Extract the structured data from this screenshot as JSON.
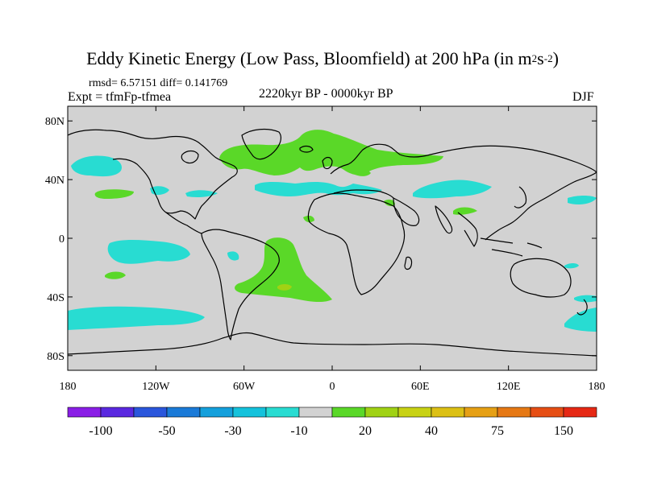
{
  "title_main": "Eddy Kinetic Energy (Low Pass, Bloomfield) at 200 hPa (in m",
  "title_sup1": "2",
  "title_mid": "s",
  "title_sup2": "-2",
  "title_end": ")",
  "stats": "rmsd= 6.57151 diff= 0.141769",
  "experiment": "Expt = tfmFp-tfmea",
  "period": "2220kyr BP - 0000kyr BP",
  "season": "DJF",
  "axes": {
    "lat_labels": [
      "80N",
      "40N",
      "0",
      "40S",
      "80S"
    ],
    "lat_values": [
      80,
      40,
      0,
      -40,
      -80
    ],
    "lon_labels": [
      "180",
      "120W",
      "60W",
      "0",
      "60E",
      "120E",
      "180"
    ],
    "lon_values": [
      -180,
      -120,
      -60,
      0,
      60,
      120,
      180
    ],
    "lon_range": [
      -180,
      180
    ],
    "lat_range": [
      -90,
      90
    ]
  },
  "colorbar": {
    "colors": [
      "#8a1ee6",
      "#5a28e0",
      "#2a56dc",
      "#1a7ad8",
      "#14a0dc",
      "#14c2dc",
      "#28dcd2",
      "#d2d2d2",
      "#5ad828",
      "#a0d214",
      "#c8d214",
      "#dcc014",
      "#e6a014",
      "#e67814",
      "#e64e14",
      "#e62814"
    ],
    "labels": [
      "-100",
      "-50",
      "-30",
      "-10",
      "20",
      "40",
      "75",
      "150"
    ]
  },
  "chart_data": {
    "type": "map",
    "field": "Eddy Kinetic Energy difference",
    "units": "m2 s-2",
    "neutral_range": [
      -10,
      10
    ],
    "regions": [
      {
        "name": "North Atlantic / Greenland",
        "sign": "positive",
        "level": "10 to 20"
      },
      {
        "name": "North Atlantic mid-latitudes",
        "sign": "negative",
        "level": "-10 to -20"
      },
      {
        "name": "Northwest Pacific",
        "sign": "negative",
        "level": "-10 to -20"
      },
      {
        "name": "South Atlantic",
        "sign": "positive",
        "level": "10 to 40"
      },
      {
        "name": "South Pacific",
        "sign": "negative",
        "level": "-10 to -20"
      },
      {
        "name": "Southern Ocean near New Zealand",
        "sign": "negative",
        "level": "-10 to -20"
      }
    ]
  }
}
